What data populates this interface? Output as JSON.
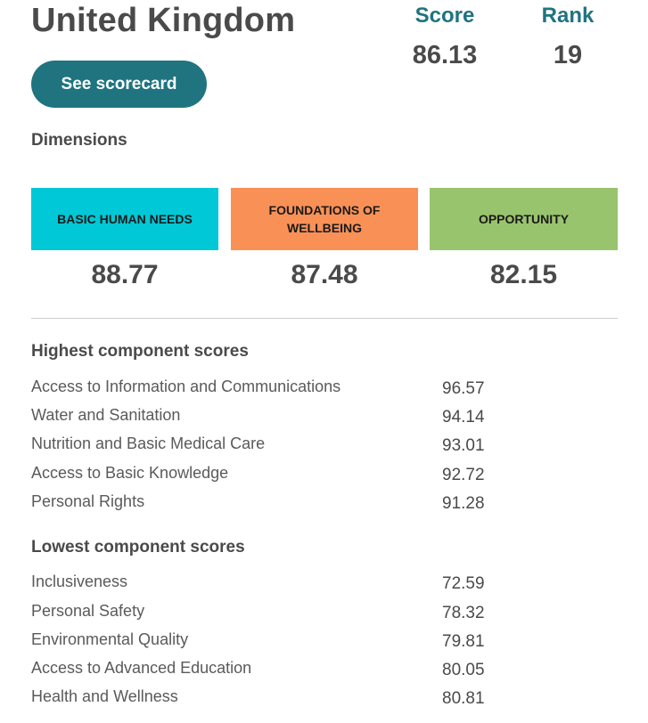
{
  "header": {
    "country": "United Kingdom",
    "scorecard_button": "See scorecard"
  },
  "summary": {
    "score_label": "Score",
    "score_value": "86.13",
    "rank_label": "Rank",
    "rank_value": "19"
  },
  "dimensions": {
    "title": "Dimensions",
    "items": [
      {
        "label": "BASIC HUMAN NEEDS",
        "value": "88.77",
        "color": "#00c8d6"
      },
      {
        "label": "FOUNDATIONS OF WELLBEING",
        "value": "87.48",
        "color": "#f99157"
      },
      {
        "label": "OPPORTUNITY",
        "value": "82.15",
        "color": "#99c46e"
      }
    ]
  },
  "highest": {
    "title": "Highest component scores",
    "rows": [
      {
        "name": "Access to Information and Communications",
        "value": "96.57"
      },
      {
        "name": "Water and Sanitation",
        "value": "94.14"
      },
      {
        "name": "Nutrition and Basic Medical Care",
        "value": "93.01"
      },
      {
        "name": "Access to Basic Knowledge",
        "value": "92.72"
      },
      {
        "name": "Personal Rights",
        "value": "91.28"
      }
    ]
  },
  "lowest": {
    "title": "Lowest component scores",
    "rows": [
      {
        "name": "Inclusiveness",
        "value": "72.59"
      },
      {
        "name": "Personal Safety",
        "value": "78.32"
      },
      {
        "name": "Environmental Quality",
        "value": "79.81"
      },
      {
        "name": "Access to Advanced Education",
        "value": "80.05"
      },
      {
        "name": "Health and Wellness",
        "value": "80.81"
      }
    ]
  }
}
